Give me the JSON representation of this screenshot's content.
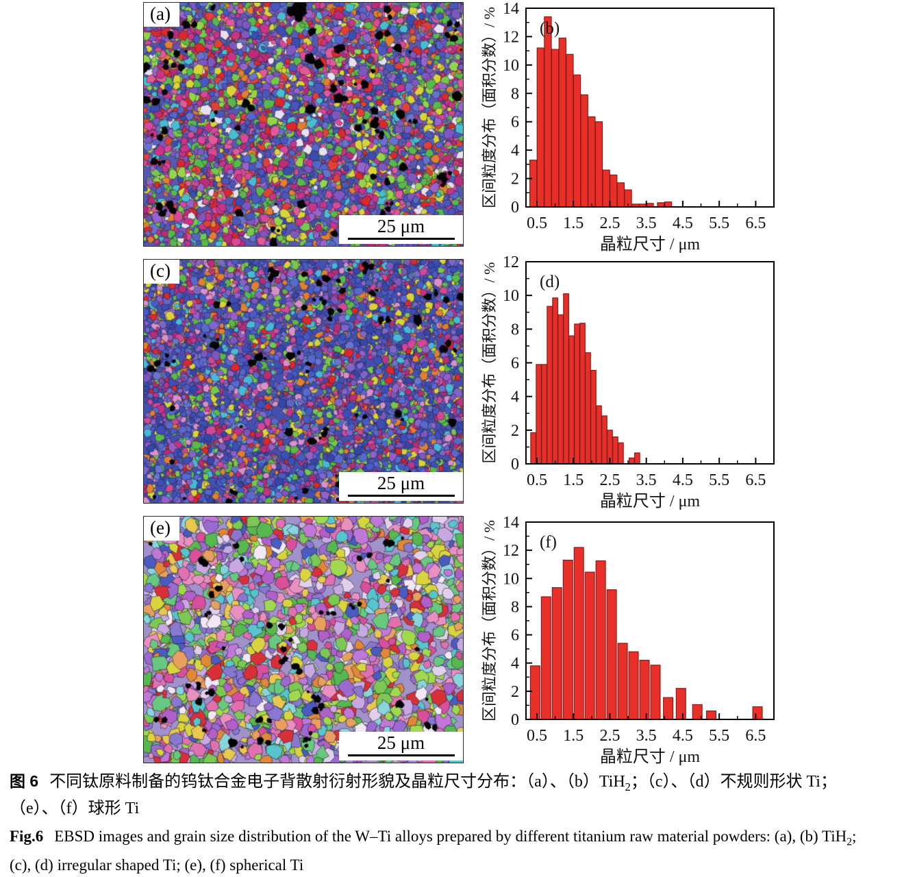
{
  "figure": {
    "scale_bar_text": "25 μm",
    "bar_fill": "#e8302a",
    "bar_edge": "#8c1b16",
    "axis_color": "#000000"
  },
  "ebsd_panels": [
    {
      "id": "a",
      "label": "(a)",
      "scale_text": "25 μm",
      "palette": [
        "#4a58bc",
        "#5565c8",
        "#3c4cb0",
        "#6672cc",
        "#4a58bc",
        "#c83488",
        "#d84898",
        "#b82c78",
        "#e05a9a",
        "#c83488",
        "#58b84c",
        "#74c84e",
        "#94d44c",
        "#58b84c",
        "#7e58c0",
        "#9864cc",
        "#7e58c0",
        "#d82830",
        "#e04038",
        "#d8d438",
        "#48bcd0",
        "#e08030",
        "#e8e0f0"
      ]
    },
    {
      "id": "c",
      "label": "(c)",
      "scale_text": "25 μm",
      "palette": [
        "#3e4eb8",
        "#4a5ac4",
        "#5868cc",
        "#3646a8",
        "#6a74d0",
        "#4a5ac4",
        "#3e4eb8",
        "#5868cc",
        "#8066c8",
        "#9460c8",
        "#7a58bc",
        "#c03488",
        "#d04898",
        "#b82c78",
        "#58b84c",
        "#78c84e",
        "#d82830",
        "#e08030",
        "#48b8d8",
        "#d8d438",
        "#d890c8"
      ]
    },
    {
      "id": "e",
      "label": "(e)",
      "scale_text": "25 μm",
      "palette": [
        "#b060c8",
        "#9a6ad0",
        "#8878d0",
        "#c078d8",
        "#d8509c",
        "#e070b0",
        "#e890c0",
        "#58b850",
        "#7cc854",
        "#a0d850",
        "#68c880",
        "#58c4cc",
        "#88d4dc",
        "#d8d440",
        "#e8c850",
        "#e08838",
        "#e8a060",
        "#e0d0ec",
        "#c8a8e0",
        "#4a5cc0",
        "#d83038",
        "#f0e8f4"
      ]
    }
  ],
  "chart_data": [
    {
      "id": "b",
      "type": "bar",
      "panel_label": "(b)",
      "xlabel": "晶粒尺寸 / μm",
      "ylabel": "区间粒度分布（面积分数）/ %",
      "xlim": [
        0.2,
        7.0
      ],
      "ylim": [
        0,
        14
      ],
      "xticks": [
        0.5,
        1.5,
        2.5,
        3.5,
        4.5,
        5.5,
        6.5
      ],
      "minor_xticks": [
        1.0,
        2.0,
        3.0,
        4.0,
        5.0,
        6.0
      ],
      "yticks": [
        0,
        2,
        4,
        6,
        8,
        10,
        12,
        14
      ],
      "bar_width": 0.19,
      "x": [
        0.4,
        0.6,
        0.8,
        1.0,
        1.2,
        1.4,
        1.6,
        1.8,
        2.0,
        2.2,
        2.4,
        2.6,
        2.8,
        3.0,
        3.2,
        3.4,
        3.6,
        3.9,
        4.1
      ],
      "values": [
        3.3,
        11.2,
        13.4,
        11.1,
        11.9,
        10.75,
        9.3,
        7.9,
        6.35,
        6.0,
        2.6,
        2.25,
        1.7,
        1.2,
        0.2,
        0.2,
        0.25,
        0.3,
        0.35
      ]
    },
    {
      "id": "d",
      "type": "bar",
      "panel_label": "(d)",
      "xlabel": "晶粒尺寸 / μm",
      "ylabel": "区间粒度分布（面积分数）/ %",
      "xlim": [
        0.2,
        7.0
      ],
      "ylim": [
        0,
        12
      ],
      "xticks": [
        0.5,
        1.5,
        2.5,
        3.5,
        4.5,
        5.5,
        6.5
      ],
      "minor_xticks": [
        1.0,
        2.0,
        3.0,
        4.0,
        5.0,
        6.0
      ],
      "yticks": [
        0,
        2,
        4,
        6,
        8,
        10,
        12
      ],
      "bar_width": 0.14,
      "x": [
        0.4,
        0.55,
        0.7,
        0.85,
        1.0,
        1.15,
        1.3,
        1.45,
        1.6,
        1.75,
        1.9,
        2.05,
        2.2,
        2.35,
        2.5,
        2.65,
        2.8,
        3.1,
        3.25
      ],
      "values": [
        1.85,
        5.9,
        5.9,
        9.35,
        9.85,
        8.85,
        10.1,
        7.6,
        8.3,
        8.35,
        6.6,
        5.55,
        3.45,
        2.85,
        2.0,
        1.6,
        1.25,
        0.35,
        0.65
      ]
    },
    {
      "id": "f",
      "type": "bar",
      "panel_label": "(f)",
      "xlabel": "晶粒尺寸 / μm",
      "ylabel": "区间粒度分布（面积分数）/ %",
      "xlim": [
        0.2,
        7.0
      ],
      "ylim": [
        0,
        14
      ],
      "xticks": [
        0.5,
        1.5,
        2.5,
        3.5,
        4.5,
        5.5,
        6.5
      ],
      "minor_xticks": [
        1.0,
        2.0,
        3.0,
        4.0,
        5.0,
        6.0
      ],
      "yticks": [
        0,
        2,
        4,
        6,
        8,
        10,
        12,
        14
      ],
      "bar_width": 0.26,
      "x": [
        0.45,
        0.75,
        1.05,
        1.35,
        1.65,
        1.95,
        2.25,
        2.55,
        2.85,
        3.15,
        3.45,
        3.75,
        4.1,
        4.45,
        4.9,
        5.28,
        6.55
      ],
      "values": [
        3.8,
        8.7,
        9.35,
        11.3,
        12.2,
        10.45,
        11.25,
        9.2,
        5.4,
        4.8,
        4.2,
        3.85,
        1.55,
        2.2,
        1.05,
        0.6,
        0.9
      ]
    }
  ],
  "captions": {
    "zh_line1_prefix": "图 6",
    "zh_line1_text": "不同钛原料制备的钨钛合金电子背散射衍射形貌及晶粒尺寸分布：（a）、（b）TiH",
    "zh_line1_sub": "2",
    "zh_line1_tail": "；（c）、（d）不规则形状 Ti；",
    "zh_line2": "（e）、（f）球形 Ti",
    "en_line1_prefix": "Fig.6",
    "en_line1_text": "EBSD images and grain size distribution of the W–Ti alloys prepared by different titanium raw material powders: (a), (b) TiH",
    "en_line1_sub": "2",
    "en_line1_tail": ";",
    "en_line2": "(c), (d) irregular shaped Ti; (e), (f) spherical Ti"
  }
}
